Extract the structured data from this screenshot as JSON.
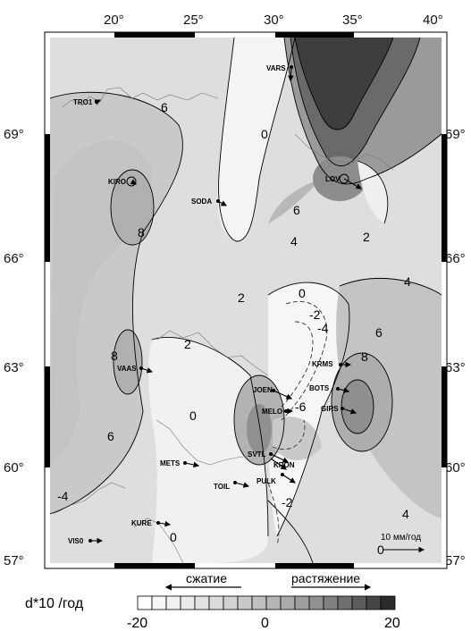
{
  "lon_labels": [
    "20°",
    "25°",
    "30°",
    "35°",
    "40°"
  ],
  "lat_labels": [
    "69°",
    "66°",
    "63°",
    "60°",
    "57°"
  ],
  "stations": [
    "TRO1",
    "KIRO",
    "SODA",
    "VARS",
    "LOV",
    "VAAS",
    "KRMS",
    "BOTS",
    "JOEN",
    "MELO",
    "GIRS",
    "METS",
    "SVTL",
    "KRON",
    "TOIL",
    "PULK",
    "KURE",
    "VIS0"
  ],
  "contour_labels": [
    "6",
    "0",
    "8",
    "6",
    "4",
    "2",
    "2",
    "0",
    "-2",
    "-4",
    "4",
    "6",
    "8",
    "2",
    "8",
    "6",
    "0",
    "-6",
    "-2",
    "4",
    "0",
    "0",
    "-4"
  ],
  "scale_label": "10 мм/год",
  "legend": {
    "title": "d*10 /год",
    "compression": "сжатие",
    "extension": "растяжение",
    "ticks": [
      "-20",
      "0",
      "20"
    ],
    "colors": [
      "#ffffff",
      "#f8f8f8",
      "#f1f1f1",
      "#eaeaea",
      "#e2e2e2",
      "#dbdbdb",
      "#d2d2d2",
      "#c9c9c9",
      "#bfbfbf",
      "#b5b5b5",
      "#aaaaaa",
      "#9e9e9e",
      "#909090",
      "#808080",
      "#6f6f6f",
      "#5c5c5c",
      "#454545",
      "#2a2a2a"
    ]
  }
}
